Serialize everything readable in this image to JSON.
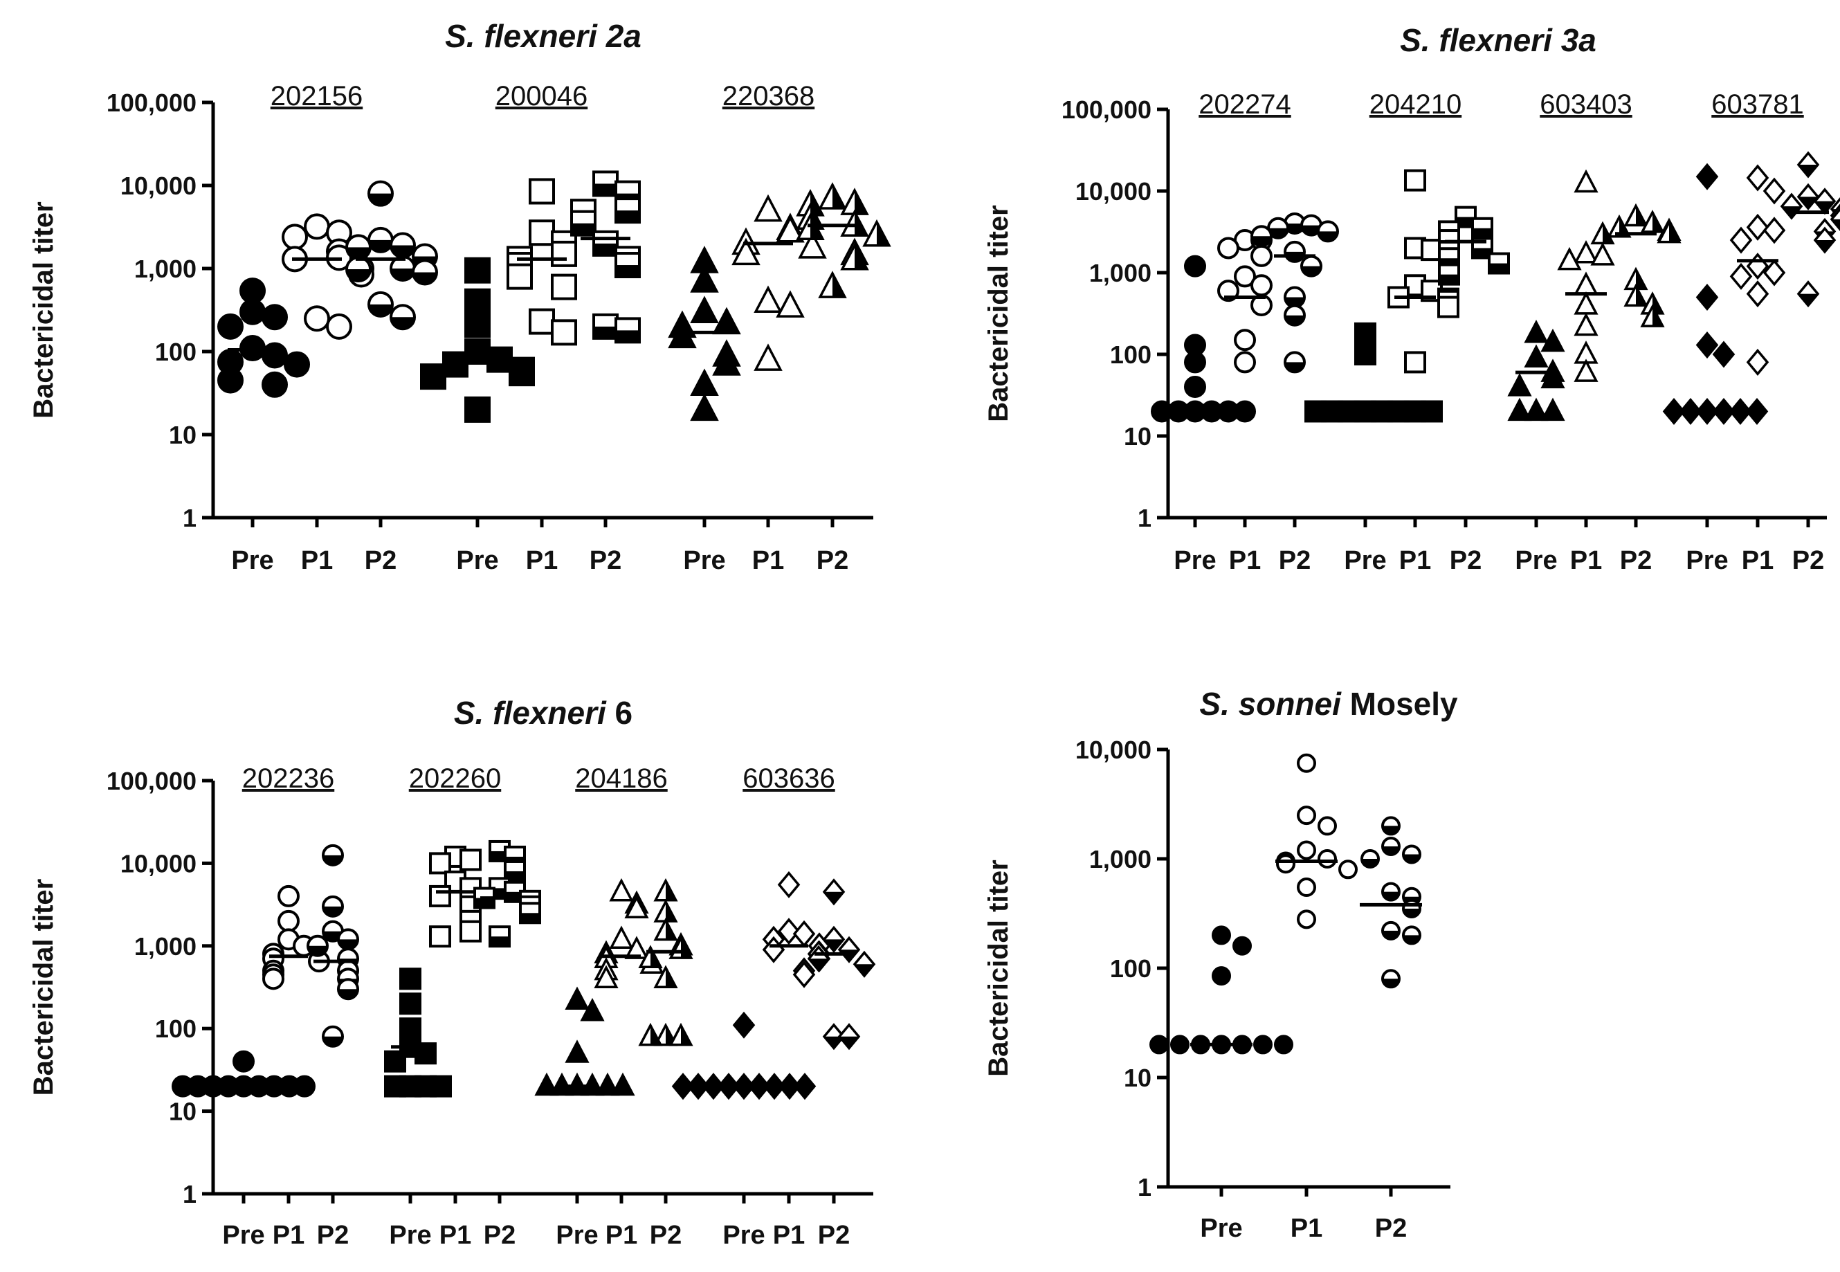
{
  "chart_data": [
    {
      "type": "scatter",
      "title_italic": "S. flexneri 2a",
      "title_plain": "",
      "ylabel": "Bactericidal titer",
      "yscale": "log",
      "ylim": [
        1,
        100000
      ],
      "ticks": [
        1,
        10,
        100,
        1000,
        10000,
        100000
      ],
      "tick_labels": [
        "1",
        "10",
        "100",
        "1,000",
        "10,000",
        "100,000"
      ],
      "group_labels": [
        "Pre",
        "P1",
        "P2"
      ],
      "strains": [
        {
          "name": "202156",
          "shape": "circle",
          "groups": [
            {
              "median": 105,
              "values": [
                540,
                300,
                260,
                200,
                110,
                90,
                75,
                70,
                45,
                40
              ]
            },
            {
              "median": 1300,
              "values": [
                3200,
                2700,
                2400,
                1600,
                1350,
                1300,
                1000,
                850,
                250,
                200
              ]
            },
            {
              "median": 1300,
              "values": [
                8000,
                2200,
                1900,
                1800,
                1400,
                1000,
                980,
                900,
                370,
                260
              ]
            }
          ]
        },
        {
          "name": "200046",
          "shape": "square",
          "groups": [
            {
              "median": 80,
              "values": [
                950,
                400,
                210,
                100,
                80,
                70,
                60,
                55,
                50,
                20
              ]
            },
            {
              "median": 1300,
              "values": [
                8500,
                2700,
                2000,
                1500,
                1300,
                1100,
                800,
                600,
                230,
                170
              ]
            },
            {
              "median": 2300,
              "values": [
                10500,
                8000,
                5000,
                4800,
                3500,
                2000,
                1300,
                1100,
                200,
                180
              ]
            }
          ]
        },
        {
          "name": "220368",
          "shape": "triangle",
          "groups": [
            {
              "median": 170,
              "values": [
                1200,
                700,
                300,
                220,
                200,
                150,
                90,
                70,
                40,
                20
              ]
            },
            {
              "median": 2000,
              "values": [
                5000,
                3000,
                2800,
                2000,
                1800,
                1500,
                400,
                350,
                80
              ]
            },
            {
              "median": 3300,
              "values": [
                7000,
                6000,
                5800,
                4000,
                3300,
                3000,
                2500,
                1500,
                1300,
                600
              ]
            }
          ]
        }
      ]
    },
    {
      "type": "scatter",
      "title_italic": "S. flexneri 3a",
      "title_plain": "",
      "ylabel": "Bactericidal titer",
      "yscale": "log",
      "ylim": [
        1,
        100000
      ],
      "ticks": [
        1,
        10,
        100,
        1000,
        10000,
        100000
      ],
      "tick_labels": [
        "1",
        "10",
        "100",
        "1,000",
        "10,000",
        "100,000"
      ],
      "group_labels": [
        "Pre",
        "P1",
        "P2"
      ],
      "strains": [
        {
          "name": "202274",
          "shape": "circle",
          "groups": [
            {
              "median": 20,
              "values": [
                1200,
                130,
                80,
                40,
                20,
                20,
                20,
                20,
                20,
                20
              ]
            },
            {
              "median": 500,
              "values": [
                2500,
                2500,
                2000,
                1600,
                900,
                700,
                600,
                400,
                150,
                80
              ]
            },
            {
              "median": 1600,
              "values": [
                4000,
                3800,
                3500,
                3200,
                2800,
                1800,
                1200,
                500,
                300,
                80
              ]
            }
          ]
        },
        {
          "name": "204210",
          "shape": "square",
          "groups": [
            {
              "median": 20,
              "values": [
                180,
                100,
                20,
                20,
                20,
                20,
                20,
                20,
                20,
                20
              ]
            },
            {
              "median": 500,
              "values": [
                13500,
                2000,
                1900,
                700,
                600,
                500,
                480,
                450,
                380,
                80
              ]
            },
            {
              "median": 2400,
              "values": [
                4800,
                3500,
                3200,
                2500,
                2000,
                1800,
                1500,
                1300,
                1000,
                950
              ]
            }
          ]
        },
        {
          "name": "603403",
          "shape": "triangle",
          "groups": [
            {
              "median": 60,
              "values": [
                180,
                140,
                90,
                60,
                50,
                40,
                20,
                20,
                20
              ]
            },
            {
              "median": 550,
              "values": [
                12500,
                1700,
                1600,
                1400,
                700,
                400,
                220,
                100,
                60
              ]
            },
            {
              "median": 3000,
              "values": [
                4800,
                4000,
                3500,
                3200,
                3000,
                2900,
                800,
                500,
                400,
                280
              ]
            }
          ]
        },
        {
          "name": "603781",
          "shape": "diamond",
          "groups": [
            {
              "median": 20,
              "values": [
                15000,
                500,
                130,
                100,
                20,
                20,
                20,
                20,
                20,
                20
              ]
            },
            {
              "median": 1400,
              "values": [
                14500,
                10000,
                3600,
                3300,
                2500,
                1200,
                1000,
                900,
                550,
                80
              ]
            },
            {
              "median": 5500,
              "values": [
                21000,
                8500,
                7500,
                6500,
                6000,
                5000,
                4500,
                3200,
                2500,
                550
              ]
            }
          ]
        }
      ]
    },
    {
      "type": "scatter",
      "title_italic": "S. flexneri",
      "title_plain": " 6",
      "ylabel": "Bactericidal titer",
      "yscale": "log",
      "ylim": [
        1,
        100000
      ],
      "ticks": [
        1,
        10,
        100,
        1000,
        10000,
        100000
      ],
      "tick_labels": [
        "1",
        "10",
        "100",
        "1,000",
        "10,000",
        "100,000"
      ],
      "group_labels": [
        "Pre",
        "P1",
        "P2"
      ],
      "strains": [
        {
          "name": "202236",
          "shape": "circle",
          "groups": [
            {
              "median": 20,
              "values": [
                40,
                20,
                20,
                20,
                20,
                20,
                20,
                20,
                20,
                20
              ]
            },
            {
              "median": 750,
              "values": [
                4000,
                2000,
                1200,
                1000,
                800,
                700,
                650,
                500,
                450,
                400
              ]
            },
            {
              "median": 650,
              "values": [
                12500,
                3000,
                1500,
                1200,
                1000,
                700,
                500,
                400,
                300,
                80
              ]
            }
          ]
        },
        {
          "name": "202260",
          "shape": "square",
          "groups": [
            {
              "median": 60,
              "values": [
                400,
                200,
                100,
                60,
                50,
                40,
                20,
                20,
                20,
                20
              ]
            },
            {
              "median": 4500,
              "values": [
                12000,
                11000,
                10000,
                6000,
                5000,
                4000,
                3000,
                2000,
                1500,
                1300
              ]
            },
            {
              "median": 3800,
              "values": [
                14000,
                12000,
                8000,
                5000,
                4500,
                3800,
                3500,
                3000,
                2500,
                1300
              ]
            }
          ]
        },
        {
          "name": "204186",
          "shape": "triangle",
          "groups": [
            {
              "median": 20,
              "values": [
                220,
                160,
                50,
                20,
                20,
                20,
                20,
                20,
                20
              ]
            },
            {
              "median": 750,
              "values": [
                4500,
                3200,
                2800,
                1200,
                900,
                800,
                700,
                600,
                500,
                400
              ]
            },
            {
              "median": 850,
              "values": [
                4500,
                2500,
                1500,
                1000,
                900,
                700,
                400,
                80,
                80,
                80
              ]
            }
          ]
        },
        {
          "name": "603636",
          "shape": "diamond",
          "groups": [
            {
              "median": 20,
              "values": [
                110,
                20,
                20,
                20,
                20,
                20,
                20,
                20,
                20,
                20
              ]
            },
            {
              "median": 1000,
              "values": [
                5500,
                1500,
                1400,
                1200,
                1000,
                900,
                800,
                700,
                500,
                450
              ]
            },
            {
              "median": 800,
              "values": [
                4500,
                1200,
                900,
                800,
                700,
                600,
                80,
                80
              ]
            }
          ]
        }
      ]
    },
    {
      "type": "scatter",
      "title_italic": "S. sonnei",
      "title_plain": " Mosely",
      "ylabel": "Bactericidal titer",
      "yscale": "log",
      "ylim": [
        1,
        10000
      ],
      "ticks": [
        1,
        10,
        100,
        1000,
        10000
      ],
      "tick_labels": [
        "1",
        "10",
        "100",
        "1,000",
        "10,000"
      ],
      "group_labels": [
        "Pre",
        "P1",
        "P2"
      ],
      "strains": [
        {
          "name": "",
          "shape": "circle",
          "groups": [
            {
              "median": 20,
              "values": [
                200,
                160,
                85,
                20,
                20,
                20,
                20,
                20,
                20,
                20
              ]
            },
            {
              "median": 950,
              "values": [
                7500,
                2500,
                2000,
                1200,
                1000,
                950,
                900,
                800,
                550,
                280
              ]
            },
            {
              "median": 380,
              "values": [
                2000,
                1300,
                1100,
                1000,
                500,
                450,
                350,
                220,
                200,
                80
              ]
            }
          ]
        }
      ]
    }
  ]
}
